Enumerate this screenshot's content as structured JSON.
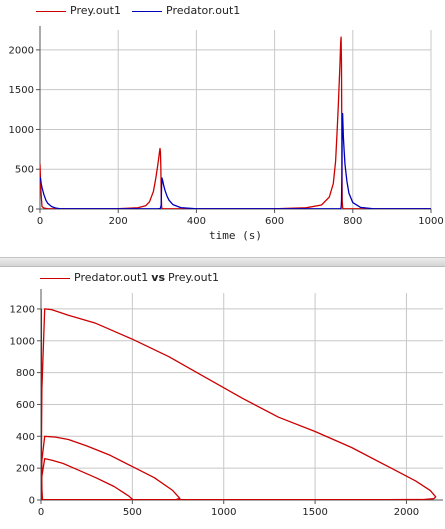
{
  "chart_data": [
    {
      "type": "line",
      "title": "",
      "xlabel": "time (s)",
      "ylabel": "",
      "xlim": [
        0,
        1000
      ],
      "ylim": [
        0,
        2250
      ],
      "xticks": [
        0,
        200,
        400,
        600,
        800,
        1000
      ],
      "yticks": [
        0,
        500,
        1000,
        1500,
        2000
      ],
      "grid": true,
      "legend_position": "top-left",
      "series": [
        {
          "name": "Prey.out1",
          "color": "#cc0000",
          "x": [
            0,
            2,
            5,
            10,
            15,
            20,
            30,
            100,
            200,
            250,
            270,
            280,
            290,
            296,
            300,
            303,
            305,
            307,
            308,
            309,
            310,
            311,
            312,
            315,
            320,
            330,
            380,
            500,
            600,
            680,
            720,
            740,
            750,
            756,
            760,
            763,
            765,
            767,
            768,
            769,
            770,
            771,
            772,
            773,
            774,
            775,
            780,
            790,
            850,
            1000
          ],
          "y": [
            560,
            250,
            30,
            12,
            8,
            5,
            3,
            2,
            4,
            15,
            40,
            90,
            220,
            380,
            510,
            620,
            700,
            760,
            720,
            560,
            200,
            30,
            6,
            3,
            2,
            2,
            2,
            2,
            3,
            15,
            50,
            150,
            320,
            600,
            1000,
            1300,
            1550,
            1800,
            1950,
            2100,
            2160,
            1800,
            700,
            100,
            20,
            5,
            3,
            2,
            2,
            2
          ]
        },
        {
          "name": "Predator.out1",
          "color": "#0000bb",
          "x": [
            0,
            1,
            3,
            5,
            10,
            15,
            20,
            30,
            40,
            50,
            60,
            80,
            150,
            250,
            300,
            305,
            308,
            310,
            311,
            312,
            314,
            316,
            320,
            325,
            330,
            340,
            360,
            400,
            600,
            765,
            768,
            770,
            771,
            772,
            773,
            774,
            775,
            776,
            778,
            780,
            785,
            790,
            800,
            820,
            850,
            1000
          ],
          "y": [
            400,
            390,
            320,
            270,
            180,
            110,
            70,
            30,
            12,
            5,
            3,
            2,
            2,
            2,
            2,
            4,
            10,
            50,
            300,
            390,
            350,
            300,
            230,
            160,
            110,
            55,
            18,
            3,
            2,
            2,
            4,
            15,
            100,
            450,
            1000,
            1200,
            1050,
            900,
            720,
            560,
            350,
            200,
            80,
            20,
            4,
            2
          ]
        }
      ]
    },
    {
      "type": "line",
      "title": "",
      "xlabel": "",
      "ylabel": "",
      "xlim": [
        0,
        2200
      ],
      "ylim": [
        0,
        1300
      ],
      "xticks": [
        0,
        500,
        1000,
        1500,
        2000
      ],
      "yticks": [
        0,
        200,
        400,
        600,
        800,
        1000,
        1200
      ],
      "grid": true,
      "legend_position": "top-left",
      "legend": {
        "y_name": "Predator.out1",
        "vs": "vs",
        "x_name": "Prey.out1",
        "color": "#cc0000"
      },
      "loops": [
        {
          "x": [
            0,
            5,
            20,
            60,
            120,
            200,
            300,
            400,
            480,
            500,
            490,
            420,
            300,
            150,
            50,
            15,
            5,
            2,
            2
          ],
          "y": [
            2,
            150,
            260,
            250,
            230,
            190,
            140,
            85,
            25,
            5,
            2,
            2,
            2,
            2,
            2,
            2,
            2,
            50,
            260
          ]
        },
        {
          "x": [
            0,
            5,
            20,
            80,
            150,
            250,
            380,
            500,
            620,
            720,
            760,
            740,
            650,
            450,
            250,
            100,
            30,
            8,
            2,
            2
          ],
          "y": [
            2,
            250,
            400,
            395,
            380,
            340,
            280,
            210,
            140,
            60,
            10,
            3,
            2,
            2,
            2,
            2,
            2,
            2,
            100,
            400
          ]
        },
        {
          "x": [
            0,
            5,
            20,
            60,
            150,
            300,
            500,
            700,
            900,
            1100,
            1300,
            1500,
            1700,
            1900,
            2050,
            2130,
            2160,
            2150,
            2100,
            2000,
            1900,
            1800,
            1700,
            1500,
            1200,
            900,
            600,
            300,
            150,
            60,
            20,
            6,
            2,
            2
          ],
          "y": [
            2,
            700,
            1200,
            1195,
            1160,
            1110,
            1010,
            900,
            770,
            640,
            520,
            430,
            330,
            210,
            120,
            60,
            20,
            8,
            4,
            3,
            2,
            2,
            2,
            2,
            2,
            2,
            2,
            2,
            2,
            2,
            2,
            2,
            300,
            1200
          ]
        }
      ]
    }
  ]
}
